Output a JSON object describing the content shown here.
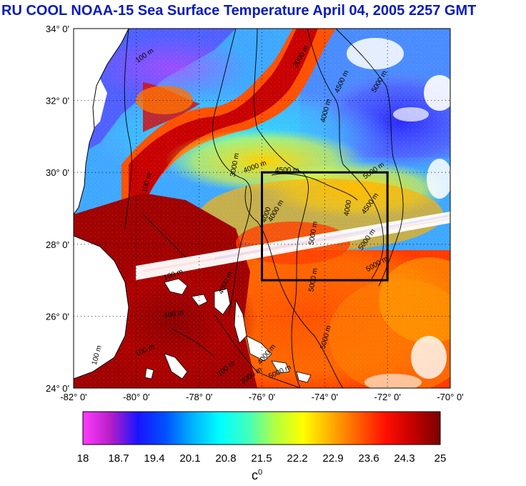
{
  "title": "RU COOL  NOAA-15 Sea Surface Temperature April 04, 2005 2257 GMT",
  "map": {
    "lat_labels": [
      "34° 0'",
      "32° 0'",
      "30° 0'",
      "28° 0'",
      "26° 0'",
      "24° 0'"
    ],
    "lon_labels": [
      "-82° 0'",
      "-80° 0'",
      "-78° 0'",
      "-76° 0'",
      "-74° 0'",
      "-72° 0'",
      "-70° 0'"
    ],
    "lat_range": [
      24,
      34
    ],
    "lon_range": [
      -82,
      -70
    ],
    "grid": "dotted",
    "region_box": {
      "lon": [
        -76,
        -72
      ],
      "lat": [
        27,
        30
      ]
    },
    "contour_labels": [
      {
        "text": "3000 m",
        "lon": -74.7,
        "lat": 33.2,
        "rot": -60
      },
      {
        "text": "4500 m",
        "lon": -73.4,
        "lat": 32.5,
        "rot": -65
      },
      {
        "text": "5000 m",
        "lon": -72.2,
        "lat": 32.5,
        "rot": -60
      },
      {
        "text": "4000 m",
        "lon": -73.9,
        "lat": 31.7,
        "rot": -75
      },
      {
        "text": "100 m",
        "lon": -79.7,
        "lat": 33.2,
        "rot": -35
      },
      {
        "text": "3000 m",
        "lon": -76.8,
        "lat": 30.2,
        "rot": -80
      },
      {
        "text": "4000 m",
        "lon": -76.2,
        "lat": 30.1,
        "rot": -20
      },
      {
        "text": "4500 m",
        "lon": -75.2,
        "lat": 30.0,
        "rot": 0
      },
      {
        "text": "5000 m",
        "lon": -72.4,
        "lat": 30.0,
        "rot": -35
      },
      {
        "text": "4000",
        "lon": -73.2,
        "lat": 29.0,
        "rot": -80
      },
      {
        "text": "4500 m",
        "lon": -72.5,
        "lat": 29.1,
        "rot": -55
      },
      {
        "text": "100 m",
        "lon": -79.6,
        "lat": 29.7,
        "rot": -75
      },
      {
        "text": "4000",
        "lon": -75.8,
        "lat": 28.8,
        "rot": -70
      },
      {
        "text": "4000 m",
        "lon": -75.5,
        "lat": 28.9,
        "rot": -60
      },
      {
        "text": "5000 m",
        "lon": -74.3,
        "lat": 28.3,
        "rot": -80
      },
      {
        "text": "5000 m",
        "lon": -72.6,
        "lat": 28.1,
        "rot": -55
      },
      {
        "text": "5000 m",
        "lon": -72.3,
        "lat": 27.4,
        "rot": -30
      },
      {
        "text": "100 m",
        "lon": -78.8,
        "lat": 27.1,
        "rot": -20
      },
      {
        "text": "4000 m",
        "lon": -77.1,
        "lat": 26.9,
        "rot": -65
      },
      {
        "text": "5000 m",
        "lon": -74.3,
        "lat": 27.0,
        "rot": -80
      },
      {
        "text": "100 m",
        "lon": -78.8,
        "lat": 26.0,
        "rot": -10
      },
      {
        "text": "5000 m",
        "lon": -73.9,
        "lat": 25.4,
        "rot": -75
      },
      {
        "text": "100 m",
        "lon": -81.2,
        "lat": 24.9,
        "rot": -75
      },
      {
        "text": "100 m",
        "lon": -79.7,
        "lat": 25.0,
        "rot": -25
      },
      {
        "text": "100 m",
        "lon": -77.1,
        "lat": 24.5,
        "rot": -40
      },
      {
        "text": "4000 m",
        "lon": -75.8,
        "lat": 24.9,
        "rot": -50
      },
      {
        "text": "3000 m",
        "lon": -76.3,
        "lat": 24.3,
        "rot": -35
      },
      {
        "text": "5000 m",
        "lon": -75.4,
        "lat": 24.4,
        "rot": -25
      }
    ]
  },
  "colorbar": {
    "ticks": [
      "18",
      "18.7",
      "19.4",
      "20.1",
      "20.8",
      "21.5",
      "22.2",
      "22.9",
      "23.6",
      "24.3",
      "25"
    ],
    "unit": "c",
    "unit_sup": "0",
    "stops": [
      "#ff3cff",
      "#b71ec8",
      "#1a14ff",
      "#0050ff",
      "#00b4ff",
      "#00ffff",
      "#40ffc0",
      "#b4ff40",
      "#ffff00",
      "#ffb000",
      "#ff6000",
      "#ff1000",
      "#c40000",
      "#7a0000"
    ]
  }
}
